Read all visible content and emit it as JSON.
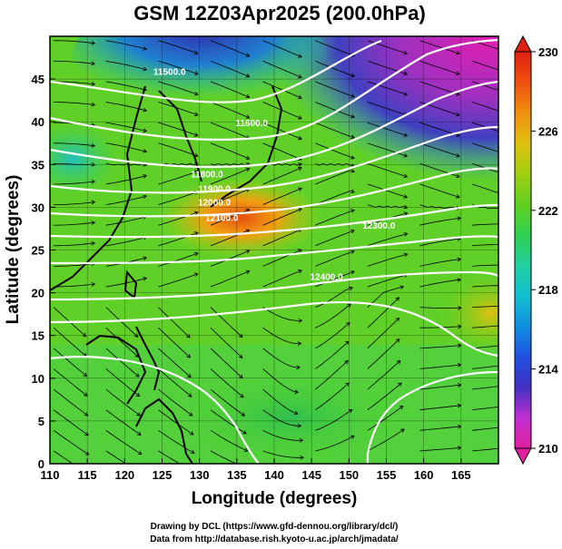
{
  "title": "GSM 12Z03Apr2025 (200.0hPa)",
  "x_axis": {
    "label": "Longitude (degrees)",
    "ticks": [
      "110",
      "115",
      "120",
      "125",
      "130",
      "135",
      "140",
      "145",
      "150",
      "155",
      "160",
      "165"
    ]
  },
  "y_axis": {
    "label": "Latitude  (degrees)",
    "ticks": [
      "0",
      "5",
      "10",
      "15",
      "20",
      "25",
      "30",
      "35",
      "40",
      "45"
    ]
  },
  "colorbar": {
    "ticks": [
      "210",
      "214",
      "218",
      "222",
      "226",
      "230"
    ],
    "colors": [
      "#e020a0",
      "#c030d0",
      "#4030c0",
      "#2050e0",
      "#1090e0",
      "#10c0d0",
      "#20d0a0",
      "#30d050",
      "#60d020",
      "#a0d010",
      "#e0c010",
      "#f09010",
      "#f05010",
      "#e02010"
    ]
  },
  "contour_labels": [
    {
      "text": "11500.0",
      "lon": 126,
      "lat": 45.5
    },
    {
      "text": "11600.0",
      "lon": 137,
      "lat": 39.5
    },
    {
      "text": "11800.0",
      "lon": 131,
      "lat": 33.5
    },
    {
      "text": "11900.0",
      "lon": 132,
      "lat": 31.8
    },
    {
      "text": "12000.0",
      "lon": 132,
      "lat": 30.2
    },
    {
      "text": "12100.0",
      "lon": 133,
      "lat": 28.4
    },
    {
      "text": "12300.0",
      "lon": 154,
      "lat": 27.5
    },
    {
      "text": "12400.0",
      "lon": 147,
      "lat": 21.5
    }
  ],
  "credits": {
    "line1": "Drawing by DCL (https://www.gfd-dennou.org/library/dcl/)",
    "line2": "Data from http://database.rish.kyoto-u.ac.jp/arch/jmadata/"
  }
}
